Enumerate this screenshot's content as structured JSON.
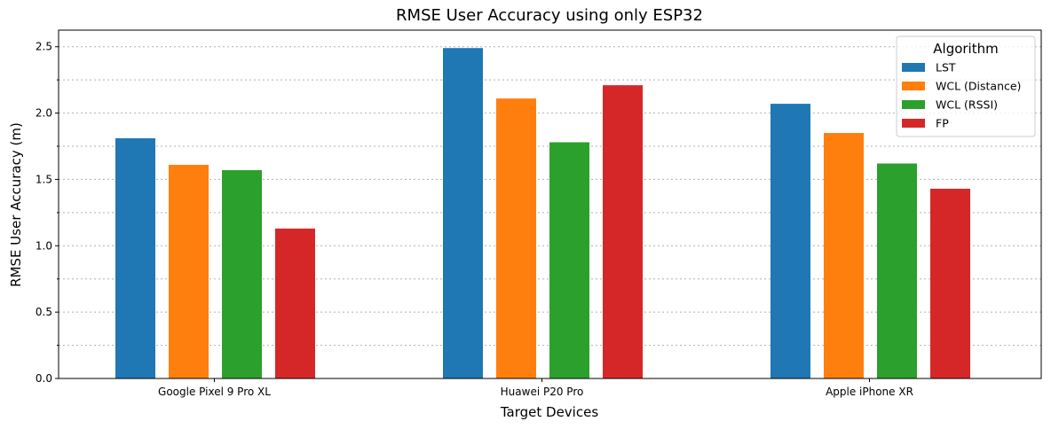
{
  "chart_data": {
    "type": "bar",
    "title": "RMSE User Accuracy using only ESP32",
    "xlabel": "Target Devices",
    "ylabel": "RMSE User Accuracy (m)",
    "ylim": [
      0,
      2.625
    ],
    "yticks": [
      "0.0",
      "0.5",
      "1.0",
      "1.5",
      "2.0",
      "2.5"
    ],
    "ytick_values": [
      0,
      0.5,
      1.0,
      1.5,
      2.0,
      2.5
    ],
    "grid": true,
    "grid_style": "dotted",
    "categories": [
      "Google Pixel 9 Pro XL",
      "Huawei P20 Pro",
      "Apple iPhone XR"
    ],
    "legend_title": "Algorithm",
    "legend_position": "top-right",
    "series": [
      {
        "name": "LST",
        "color": "#1f77b4",
        "values": [
          1.81,
          2.49,
          2.07
        ]
      },
      {
        "name": "WCL (Distance)",
        "color": "#ff7f0e",
        "values": [
          1.61,
          2.11,
          1.85
        ]
      },
      {
        "name": "WCL (RSSI)",
        "color": "#2ca02c",
        "values": [
          1.57,
          1.78,
          1.62
        ]
      },
      {
        "name": "FP",
        "color": "#d62728",
        "values": [
          1.13,
          2.21,
          1.43
        ]
      }
    ]
  }
}
